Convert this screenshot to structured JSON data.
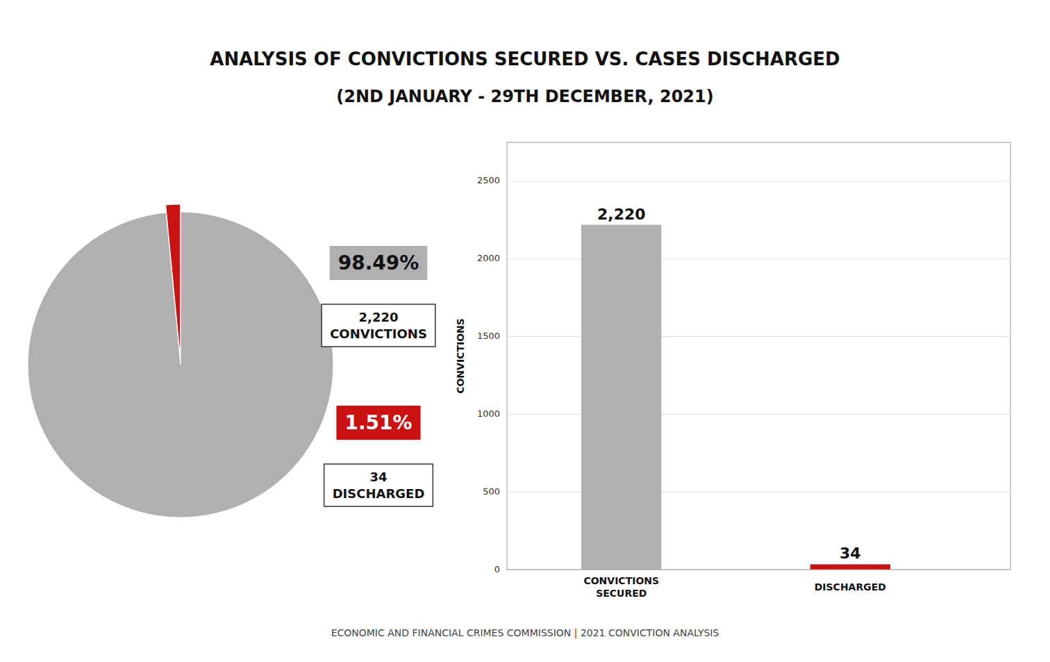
{
  "chart_data": [
    {
      "type": "pie",
      "title": "ANALYSIS OF CONVICTIONS SECURED VS. CASES DISCHARGED",
      "subtitle": "(2ND JANUARY - 29TH DECEMBER, 2021)",
      "values": [
        98.49,
        1.51
      ],
      "value_labels": [
        "98.49%",
        "1.51%"
      ],
      "colors": [
        "#b0b0b0",
        "#cc1111"
      ],
      "data_labels": true,
      "annotations": [
        "2,220\nCONVICTIONS",
        "34\nDISCHARGED"
      ]
    },
    {
      "type": "bar",
      "categories": [
        "CONVICTIONS\nSECURED",
        "DISCHARGED"
      ],
      "values": [
        2220,
        34
      ],
      "value_labels": [
        "2,220",
        "34"
      ],
      "colors": [
        "#b0b0b0",
        "#cc1111"
      ],
      "ylabel": "CONVICTIONS",
      "ylim": [
        0,
        2750
      ],
      "yticks": [
        0,
        500,
        1000,
        1500,
        2000,
        2500
      ],
      "grid": true,
      "data_labels": true,
      "annotations": [
        "ECONOMIC AND FINANCIAL CRIMES COMMISSION  |  2021 CONVICTION ANALYSIS"
      ]
    }
  ]
}
